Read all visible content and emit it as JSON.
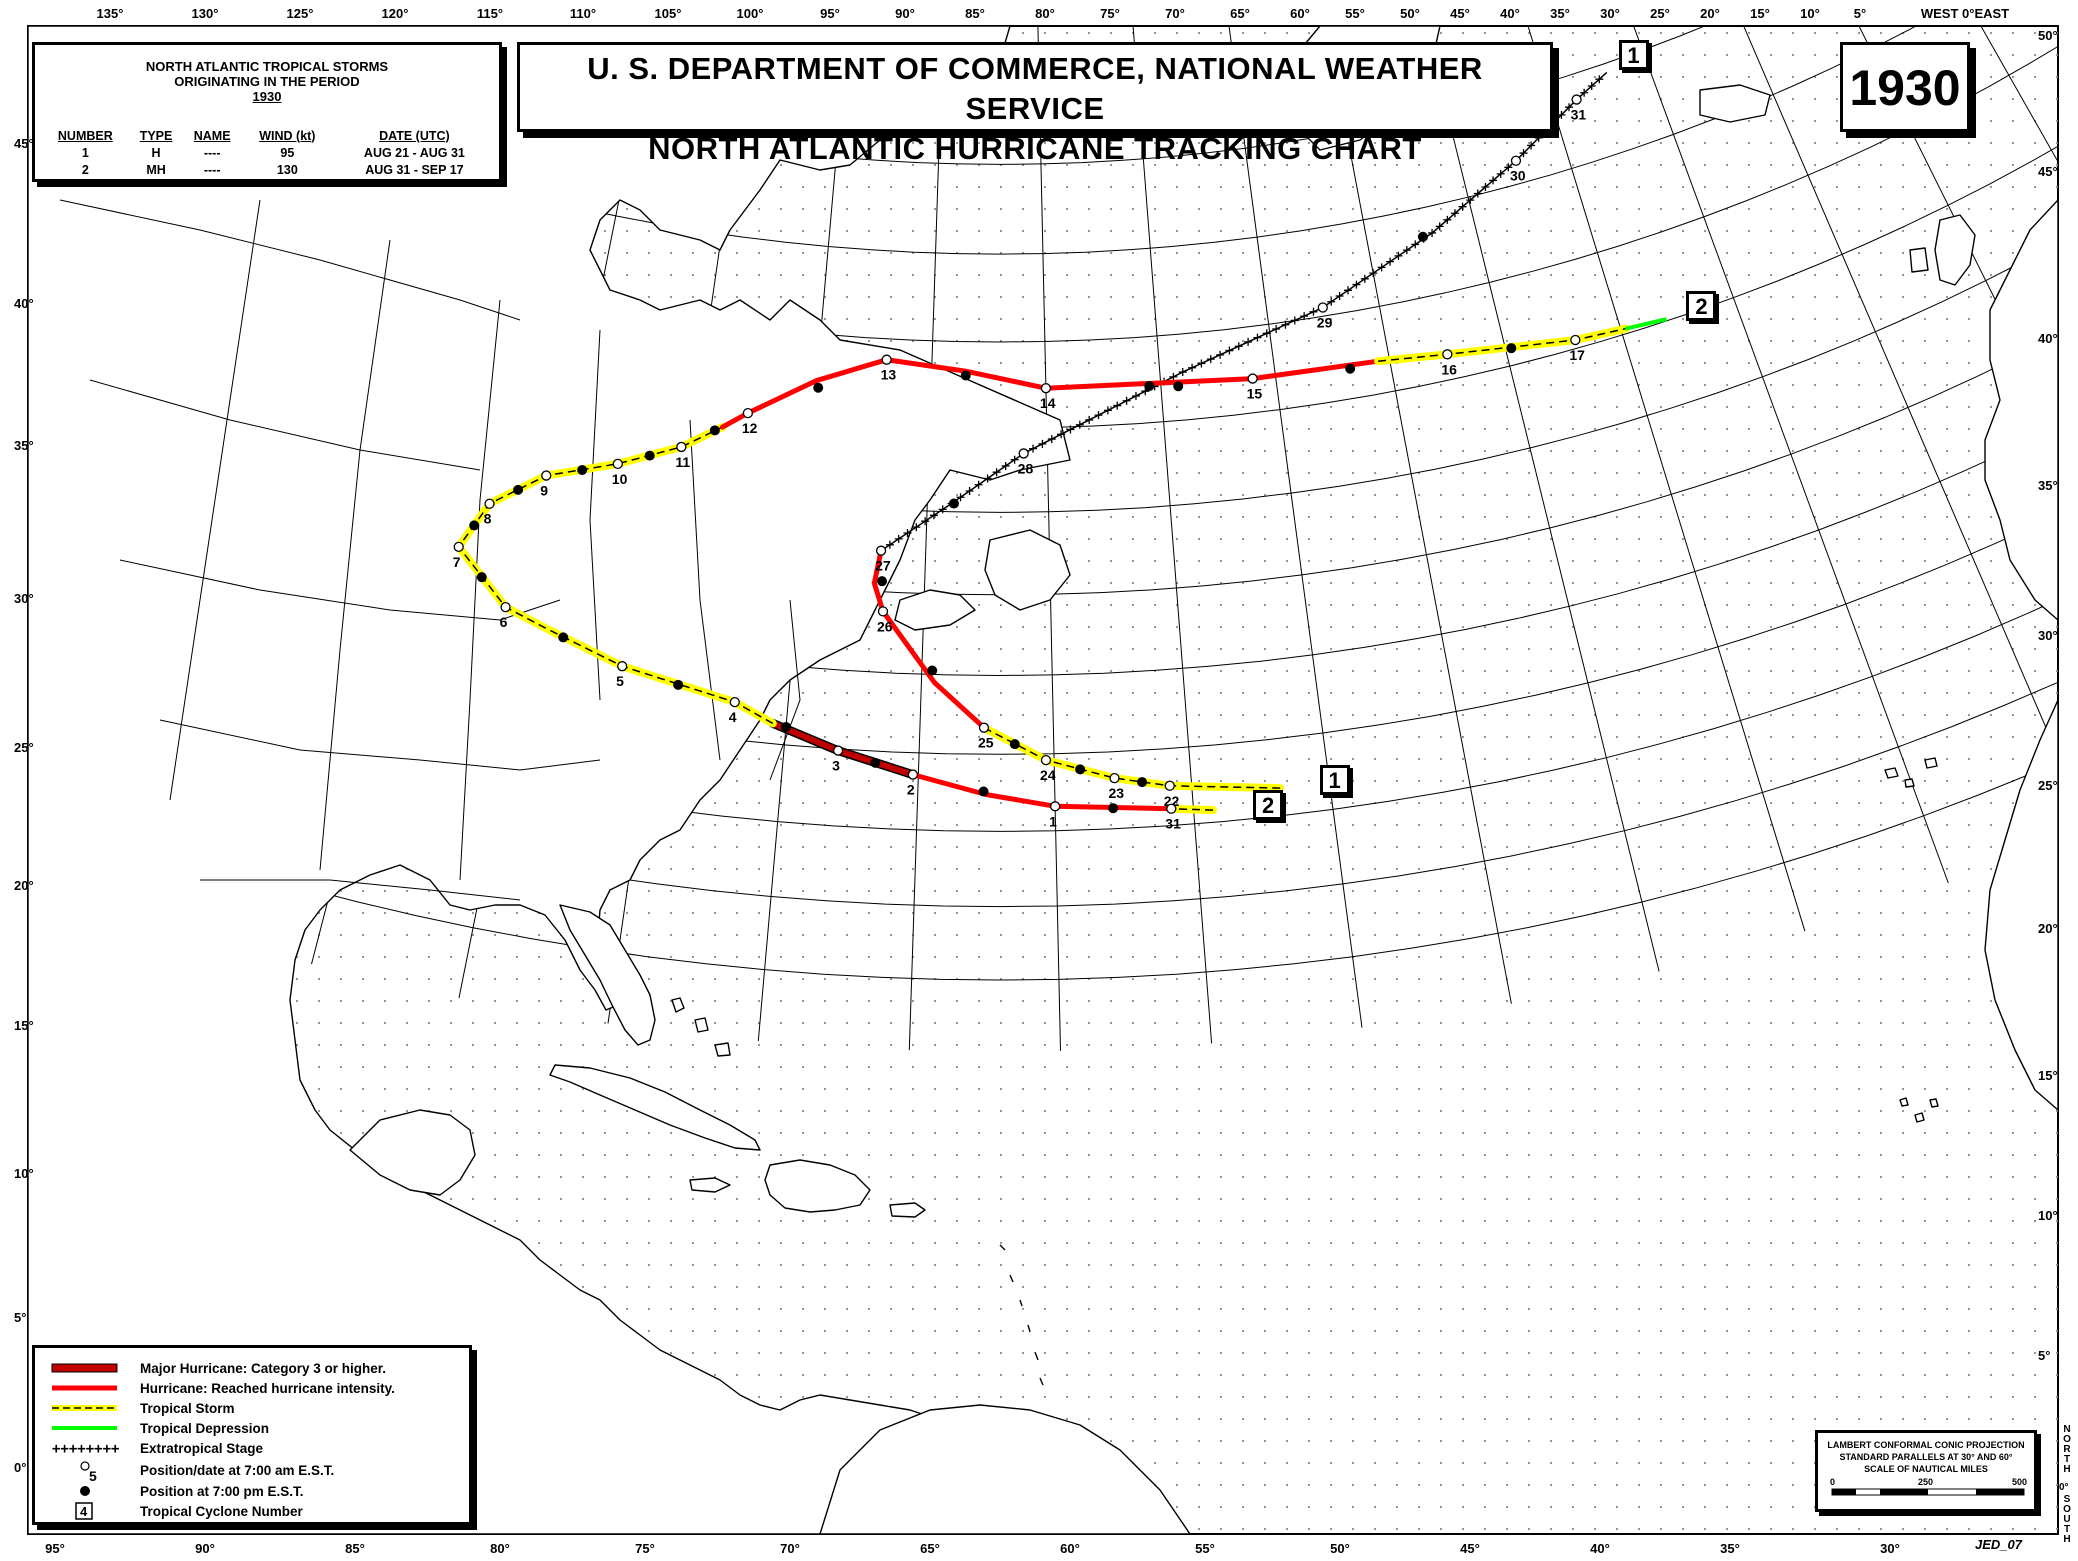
{
  "title": {
    "line1": "U. S. DEPARTMENT OF COMMERCE, NATIONAL WEATHER SERVICE",
    "line2": "NORTH ATLANTIC HURRICANE TRACKING CHART"
  },
  "year": "1930",
  "storm_table": {
    "heading1": "NORTH ATLANTIC TROPICAL STORMS",
    "heading2": "ORIGINATING IN THE PERIOD",
    "heading3": "1930",
    "columns": [
      "NUMBER",
      "TYPE",
      "NAME",
      "WIND (kt)",
      "DATE (UTC)"
    ],
    "rows": [
      {
        "number": "1",
        "type": "H",
        "name": "----",
        "wind": "95",
        "date": "AUG 21 - AUG 31"
      },
      {
        "number": "2",
        "type": "MH",
        "name": "----",
        "wind": "130",
        "date": "AUG 31 - SEP 17"
      }
    ]
  },
  "legend": {
    "major": "Major Hurricane: Category 3 or higher.",
    "hurricane": "Hurricane: Reached hurricane intensity.",
    "tropical_storm": "Tropical Storm",
    "tropical_depression": "Tropical Depression",
    "extratropical": "Extratropical Stage",
    "position_am": "Position/date at 7:00 am E.S.T.",
    "position_pm": "Position at 7:00 pm E.S.T.",
    "cyclone_number": "Tropical Cyclone Number",
    "am_sample": "5",
    "num_sample": "4"
  },
  "projection": {
    "line1": "LAMBERT CONFORMAL CONIC PROJECTION",
    "line2": "STANDARD PARALLELS AT 30° AND 60°",
    "line3": "SCALE OF NAUTICAL MILES",
    "scale_labels": [
      "0",
      "250",
      "500"
    ]
  },
  "credit": "JED_07",
  "north_south": {
    "north": "NORTH",
    "zero": "0°",
    "south": "SOUTH"
  },
  "top_labels": [
    "135°",
    "130°",
    "125°",
    "120°",
    "115°",
    "110°",
    "105°",
    "100°",
    "95°",
    "90°",
    "85°",
    "80°",
    "75°",
    "70°",
    "65°",
    "60°",
    "55°",
    "50°",
    "45°",
    "40°",
    "35°",
    "30°",
    "25°",
    "20°",
    "15°",
    "10°",
    "5°",
    "WEST 0°EAST",
    "5°",
    "10°",
    "15°"
  ],
  "bottom_labels": [
    "95°",
    "90°",
    "85°",
    "80°",
    "75°",
    "70°",
    "65°",
    "60°",
    "55°",
    "50°",
    "45°",
    "40°",
    "35°",
    "30°"
  ],
  "left_labels": [
    "45°",
    "40°",
    "35°",
    "30°",
    "25°",
    "20°",
    "15°",
    "10°",
    "5°",
    "0°"
  ],
  "right_labels": [
    "50°",
    "45°",
    "40°",
    "35°",
    "30°",
    "25°",
    "20°",
    "15°",
    "10°",
    "5°"
  ],
  "colors": {
    "major": "#c00000",
    "hurricane": "#ff0000",
    "tropical_storm": "#ffff00",
    "tropical_depression": "#00ff00",
    "extratropical": "#000000"
  },
  "storms": [
    {
      "number": "1",
      "type": "H",
      "dates": [
        {
          "label": "22",
          "lon": -55.8,
          "lat": 12.6
        },
        {
          "label": "23",
          "lon": -57.8,
          "lat": 13.3
        },
        {
          "label": "24",
          "lon": -60.3,
          "lat": 14.6
        },
        {
          "label": "25",
          "lon": -62.6,
          "lat": 16.7
        },
        {
          "label": "26",
          "lon": -66.6,
          "lat": 23.8
        },
        {
          "label": "27",
          "lon": -66.8,
          "lat": 27.5
        },
        {
          "label": "28",
          "lon": -61.0,
          "lat": 33.5
        },
        {
          "label": "29",
          "lon": -47.5,
          "lat": 40.5
        },
        {
          "label": "30",
          "lon": -37.4,
          "lat": 46.3
        },
        {
          "label": "31",
          "lon": -33.8,
          "lat": 48.6
        }
      ]
    },
    {
      "number": "2",
      "type": "MH",
      "dates": [
        {
          "label": "31",
          "lon": -55.8,
          "lat": 11.1
        },
        {
          "label": "1",
          "lon": -60.0,
          "lat": 11.6
        },
        {
          "label": "2",
          "lon": -65.2,
          "lat": 13.6
        },
        {
          "label": "3",
          "lon": -68.0,
          "lat": 14.9
        },
        {
          "label": "4",
          "lon": -72.0,
          "lat": 17.4
        },
        {
          "label": "5",
          "lon": -76.4,
          "lat": 18.7
        },
        {
          "label": "6",
          "lon": -81.2,
          "lat": 21.0
        },
        {
          "label": "7",
          "lon": -83.5,
          "lat": 24.0
        },
        {
          "label": "8",
          "lon": -82.7,
          "lat": 27.0
        },
        {
          "label": "9",
          "lon": -80.7,
          "lat": 29.4
        },
        {
          "label": "10",
          "lon": -77.9,
          "lat": 30.9
        },
        {
          "label": "11",
          "lon": -75.4,
          "lat": 32.5
        },
        {
          "label": "12",
          "lon": -72.8,
          "lat": 35.0
        },
        {
          "label": "13",
          "lon": -67.0,
          "lat": 38.8
        },
        {
          "label": "14",
          "lon": -60.0,
          "lat": 37.3
        },
        {
          "label": "15",
          "lon": -51.0,
          "lat": 37.0
        },
        {
          "label": "16",
          "lon": -42.5,
          "lat": 36.5
        },
        {
          "label": "17",
          "lon": -37.0,
          "lat": 35.5
        }
      ]
    }
  ]
}
